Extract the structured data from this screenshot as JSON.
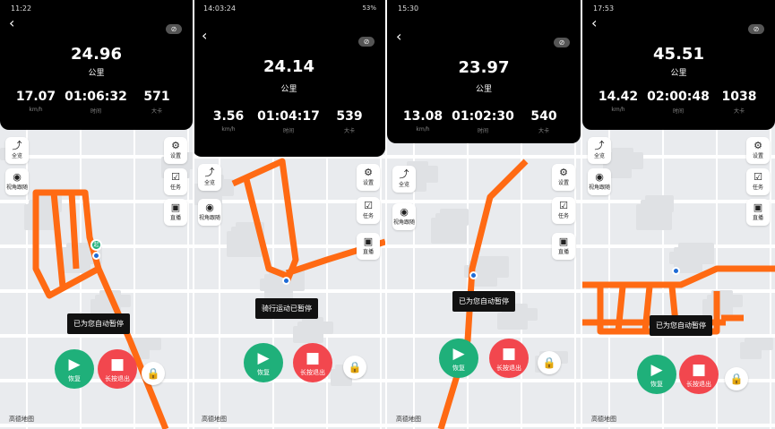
{
  "colors": {
    "route": "#ff6a13",
    "resume": "#1fb07a",
    "stop": "#f2474e",
    "header": "#000000"
  },
  "common": {
    "back_icon": "chevron-left-icon",
    "eye_icon": "eye-off-icon",
    "overview": "全览",
    "follow": "视角跟随",
    "settings": "设置",
    "tasks": "任务",
    "live": "直播",
    "resume": "恢复",
    "exit": "长按退出",
    "map_logo": "高德地图",
    "unit_distance": "公里",
    "unit_speed": "km/h",
    "label_time": "时间",
    "label_cal": "大卡"
  },
  "panels": [
    {
      "time": "11:22",
      "distance": "24.96",
      "speed": "17.07",
      "duration": "01:06:32",
      "calories": "571",
      "toast": "已为您自动暂停",
      "start_marker": "起"
    },
    {
      "time": "14:03:24",
      "battery": "53%",
      "distance": "24.14",
      "speed": "3.56",
      "duration": "01:04:17",
      "calories": "539",
      "toast": "骑行运动已暂停"
    },
    {
      "time": "15:30",
      "distance": "23.97",
      "speed": "13.08",
      "duration": "01:02:30",
      "calories": "540",
      "toast": "已为您自动暂停"
    },
    {
      "time": "17:53",
      "distance": "45.51",
      "speed": "14.42",
      "duration": "02:00:48",
      "calories": "1038",
      "toast": "已为您自动暂停"
    }
  ]
}
